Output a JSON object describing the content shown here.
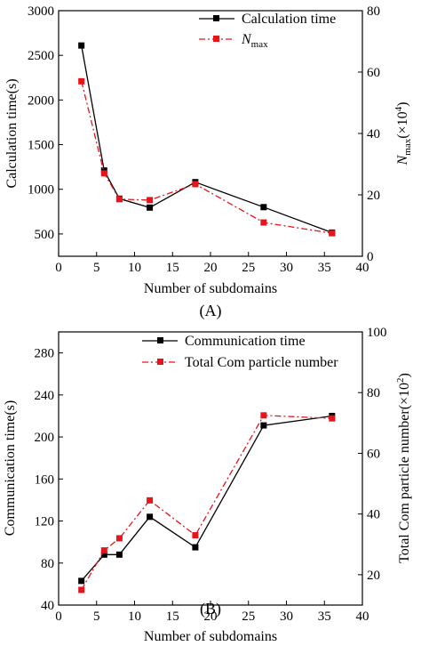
{
  "chart_data": [
    {
      "type": "line",
      "panel_label": "(A)",
      "xlabel": "Number of subdomains",
      "ylabel_left": "Calculation time(s)",
      "ylabel_right_base": "N",
      "ylabel_right_sub": "max",
      "ylabel_right_unit": "(×10",
      "ylabel_right_exp": "4",
      "ylabel_right_close": ")",
      "xlim": [
        0,
        40
      ],
      "ylim_left": [
        250,
        3000
      ],
      "ylim_right": [
        0,
        80
      ],
      "xticks": [
        0,
        5,
        10,
        15,
        20,
        25,
        30,
        35,
        40
      ],
      "yticks_left": [
        500,
        1000,
        1500,
        2000,
        2500,
        3000
      ],
      "yticks_right": [
        0,
        20,
        40,
        60,
        80
      ],
      "legend_position": "top-right",
      "series": [
        {
          "name": "Calculation time",
          "axis": "left",
          "color": "#000000",
          "style": "solid",
          "marker": "square",
          "x": [
            3,
            6,
            8,
            12,
            18,
            27,
            36
          ],
          "y": [
            2610,
            1210,
            895,
            795,
            1080,
            800,
            515
          ]
        },
        {
          "name_base": "N",
          "name_sub": "max",
          "axis": "right",
          "color": "#e8141b",
          "style": "dashdot",
          "marker": "square",
          "x": [
            3,
            6,
            8,
            12,
            18,
            27,
            36
          ],
          "y": [
            57,
            27,
            18.6,
            18.3,
            23.5,
            11,
            7.5
          ]
        }
      ]
    },
    {
      "type": "line",
      "panel_label": "(B)",
      "xlabel": "Number of subdomains",
      "ylabel_left": "Communication time(s)",
      "ylabel_right_base": "Total Com particle number(×10",
      "ylabel_right_exp": "2",
      "ylabel_right_close": ")",
      "xlim": [
        0,
        40
      ],
      "ylim_left": [
        40,
        300
      ],
      "ylim_right": [
        10,
        100
      ],
      "xticks": [
        0,
        5,
        10,
        15,
        20,
        25,
        30,
        35,
        40
      ],
      "yticks_left": [
        40,
        80,
        120,
        160,
        200,
        240,
        280
      ],
      "yticks_right": [
        20,
        40,
        60,
        80,
        100
      ],
      "legend_position": "top-center",
      "series": [
        {
          "name": "Communication time",
          "axis": "left",
          "color": "#000000",
          "style": "solid",
          "marker": "square",
          "x": [
            3,
            6,
            8,
            12,
            18,
            27,
            36
          ],
          "y": [
            63,
            88,
            88,
            124,
            95,
            211,
            220
          ]
        },
        {
          "name": "Total Com particle number",
          "axis": "right",
          "color": "#e8141b",
          "style": "dashdot",
          "marker": "square",
          "x": [
            3,
            6,
            8,
            12,
            18,
            27,
            36
          ],
          "y": [
            15,
            28,
            32,
            44.5,
            33,
            72.5,
            71.5
          ]
        }
      ]
    }
  ]
}
